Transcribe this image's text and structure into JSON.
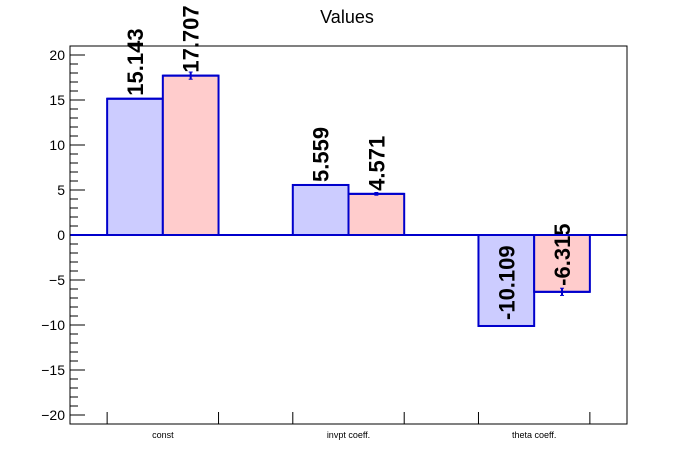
{
  "chart_data": {
    "type": "bar",
    "title": "Values",
    "xlabel": "",
    "ylabel": "",
    "categories": [
      "const",
      "invpt coeff.",
      "theta coeff."
    ],
    "series": [
      {
        "values": [
          15.143,
          5.559,
          -10.109
        ],
        "labels": [
          "15.143",
          "5.559",
          "-10.109"
        ],
        "errors": [
          0,
          0,
          0
        ],
        "fill": "#ccccff",
        "stroke": "#0000cc"
      },
      {
        "values": [
          17.707,
          4.571,
          -6.315
        ],
        "labels": [
          "17.707",
          "4.571",
          "-6.315"
        ],
        "errors": [
          0.4,
          0.15,
          0.4
        ],
        "fill": "#ffcccc",
        "stroke": "#0000cc"
      }
    ],
    "yticks": [
      -20,
      -15,
      -10,
      -5,
      0,
      5,
      10,
      15,
      20
    ],
    "ytick_labels": [
      "−20",
      "−15",
      "−10",
      "−5",
      "0",
      "5",
      "10",
      "15",
      "20"
    ],
    "ylim": [
      -21,
      21
    ],
    "grid": false,
    "legend": "none"
  }
}
